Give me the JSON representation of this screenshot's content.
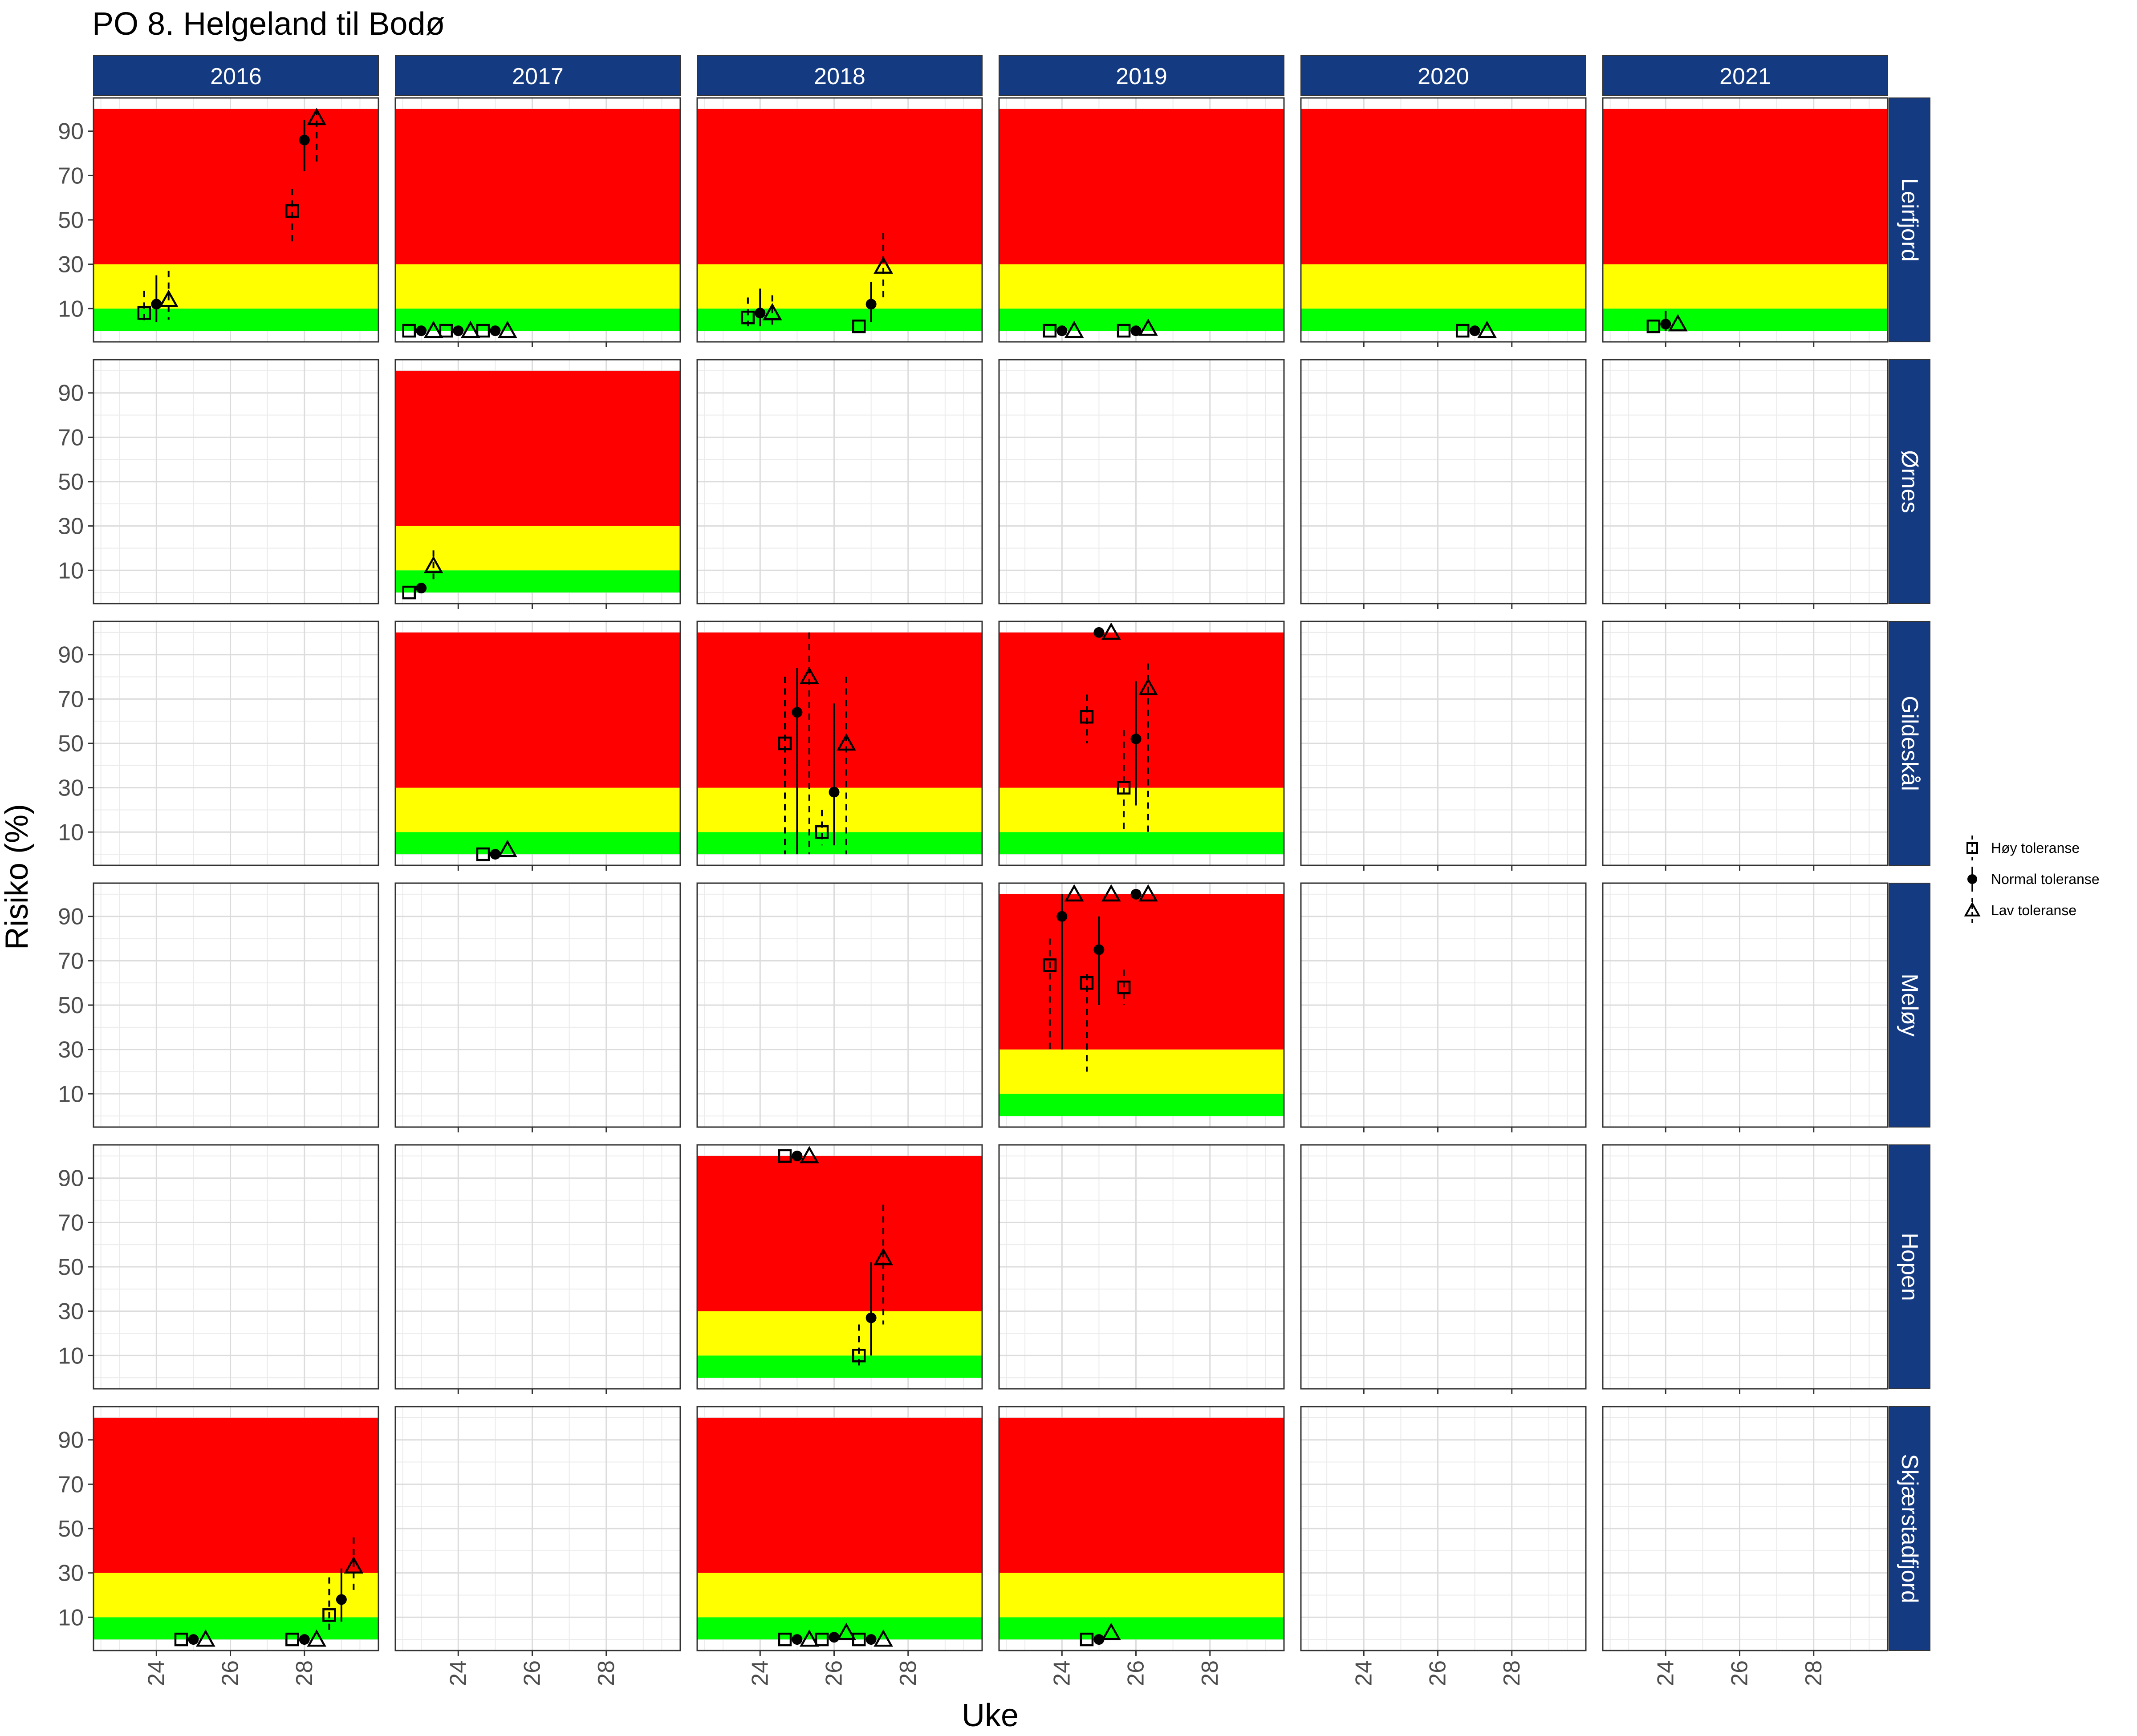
{
  "chart_data": {
    "type": "scatter",
    "title": "PO 8. Helgeland til Bodø",
    "xlabel": "Uke",
    "ylabel": "Risiko (%)",
    "years": [
      "2016",
      "2017",
      "2018",
      "2019",
      "2020",
      "2021"
    ],
    "locations": [
      "Leirfjord",
      "Ørnes",
      "Gildeskål",
      "Meløy",
      "Hopen",
      "Skjærstadfjord"
    ],
    "xlim": [
      22.3,
      30.0
    ],
    "ylim": [
      -5,
      105
    ],
    "x_ticks": [
      24,
      26,
      28
    ],
    "y_ticks": [
      10,
      30,
      50,
      70,
      90
    ],
    "risk_bands": [
      {
        "name": "lav",
        "from": 0,
        "to": 10,
        "color": "#00ff00"
      },
      {
        "name": "moderat",
        "from": 10,
        "to": 30,
        "color": "#ffff00"
      },
      {
        "name": "høy",
        "from": 30,
        "to": 100,
        "color": "#ff0000"
      }
    ],
    "grid": true,
    "legend_position": "right",
    "legend": [
      {
        "key": "hoy",
        "label": "Høy toleranse",
        "shape": "square",
        "line": "dashed"
      },
      {
        "key": "normal",
        "label": "Normal toleranse",
        "shape": "circle",
        "line": "solid"
      },
      {
        "key": "lav",
        "label": "Lav toleranse",
        "shape": "triangle",
        "line": "dashed"
      }
    ],
    "series_offsets": {
      "hoy": -0.33,
      "normal": 0,
      "lav": 0.33
    },
    "panels": [
      {
        "location": "Leirfjord",
        "year": "2016",
        "bands": true,
        "points": [
          {
            "s": "hoy",
            "week": 24,
            "y": 8,
            "lo": 3,
            "hi": 18
          },
          {
            "s": "normal",
            "week": 24,
            "y": 12,
            "lo": 4,
            "hi": 25
          },
          {
            "s": "lav",
            "week": 24,
            "y": 14,
            "lo": 5,
            "hi": 27
          },
          {
            "s": "hoy",
            "week": 28,
            "y": 54,
            "lo": 40,
            "hi": 64
          },
          {
            "s": "normal",
            "week": 28,
            "y": 86,
            "lo": 72,
            "hi": 95
          },
          {
            "s": "lav",
            "week": 28,
            "y": 96,
            "lo": 76,
            "hi": 100
          }
        ]
      },
      {
        "location": "Leirfjord",
        "year": "2017",
        "bands": true,
        "points": [
          {
            "s": "hoy",
            "week": 23,
            "y": 0
          },
          {
            "s": "normal",
            "week": 23,
            "y": 0
          },
          {
            "s": "lav",
            "week": 23,
            "y": 0
          },
          {
            "s": "hoy",
            "week": 24,
            "y": 0
          },
          {
            "s": "normal",
            "week": 24,
            "y": 0
          },
          {
            "s": "lav",
            "week": 24,
            "y": 0
          },
          {
            "s": "hoy",
            "week": 25,
            "y": 0
          },
          {
            "s": "normal",
            "week": 25,
            "y": 0
          },
          {
            "s": "lav",
            "week": 25,
            "y": 0
          }
        ]
      },
      {
        "location": "Leirfjord",
        "year": "2018",
        "bands": true,
        "points": [
          {
            "s": "hoy",
            "week": 24,
            "y": 6,
            "lo": 2,
            "hi": 15
          },
          {
            "s": "normal",
            "week": 24,
            "y": 8,
            "lo": 2,
            "hi": 19
          },
          {
            "s": "lav",
            "week": 24,
            "y": 8,
            "lo": 2,
            "hi": 16
          },
          {
            "s": "hoy",
            "week": 27,
            "y": 2
          },
          {
            "s": "normal",
            "week": 27,
            "y": 12,
            "lo": 4,
            "hi": 22
          },
          {
            "s": "lav",
            "week": 27,
            "y": 29,
            "lo": 14,
            "hi": 44
          }
        ]
      },
      {
        "location": "Leirfjord",
        "year": "2019",
        "bands": true,
        "points": [
          {
            "s": "hoy",
            "week": 24,
            "y": 0
          },
          {
            "s": "normal",
            "week": 24,
            "y": 0
          },
          {
            "s": "lav",
            "week": 24,
            "y": 0
          },
          {
            "s": "hoy",
            "week": 26,
            "y": 0
          },
          {
            "s": "normal",
            "week": 26,
            "y": 0
          },
          {
            "s": "lav",
            "week": 26,
            "y": 1
          }
        ]
      },
      {
        "location": "Leirfjord",
        "year": "2020",
        "bands": true,
        "points": [
          {
            "s": "hoy",
            "week": 27,
            "y": 0
          },
          {
            "s": "normal",
            "week": 27,
            "y": 0
          },
          {
            "s": "lav",
            "week": 27,
            "y": 0
          }
        ]
      },
      {
        "location": "Leirfjord",
        "year": "2021",
        "bands": true,
        "points": [
          {
            "s": "hoy",
            "week": 24,
            "y": 2
          },
          {
            "s": "normal",
            "week": 24,
            "y": 3,
            "lo": 0,
            "hi": 9
          },
          {
            "s": "lav",
            "week": 24,
            "y": 3
          }
        ]
      },
      {
        "location": "Ørnes",
        "year": "2017",
        "bands": true,
        "points": [
          {
            "s": "hoy",
            "week": 23,
            "y": 0
          },
          {
            "s": "normal",
            "week": 23,
            "y": 2
          },
          {
            "s": "lav",
            "week": 23,
            "y": 12,
            "lo": 6,
            "hi": 19
          }
        ]
      },
      {
        "location": "Gildeskål",
        "year": "2017",
        "bands": true,
        "points": [
          {
            "s": "hoy",
            "week": 25,
            "y": 0
          },
          {
            "s": "normal",
            "week": 25,
            "y": 0
          },
          {
            "s": "lav",
            "week": 25,
            "y": 2
          }
        ]
      },
      {
        "location": "Gildeskål",
        "year": "2018",
        "bands": true,
        "points": [
          {
            "s": "hoy",
            "week": 25,
            "y": 50,
            "lo": 0,
            "hi": 80
          },
          {
            "s": "normal",
            "week": 25,
            "y": 64,
            "lo": 0,
            "hi": 84
          },
          {
            "s": "lav",
            "week": 25,
            "y": 80,
            "lo": 0,
            "hi": 100
          },
          {
            "s": "hoy",
            "week": 26,
            "y": 10,
            "lo": 4,
            "hi": 20
          },
          {
            "s": "normal",
            "week": 26,
            "y": 28,
            "lo": 4,
            "hi": 68
          },
          {
            "s": "lav",
            "week": 26,
            "y": 50,
            "lo": 0,
            "hi": 80
          }
        ]
      },
      {
        "location": "Gildeskål",
        "year": "2019",
        "bands": true,
        "points": [
          {
            "s": "hoy",
            "week": 25,
            "y": 62,
            "lo": 50,
            "hi": 72
          },
          {
            "s": "normal",
            "week": 25,
            "y": 100
          },
          {
            "s": "lav",
            "week": 25,
            "y": 100
          },
          {
            "s": "hoy",
            "week": 26,
            "y": 30,
            "lo": 10,
            "hi": 56
          },
          {
            "s": "normal",
            "week": 26,
            "y": 52,
            "lo": 22,
            "hi": 78
          },
          {
            "s": "lav",
            "week": 26,
            "y": 75,
            "lo": 10,
            "hi": 86
          }
        ]
      },
      {
        "location": "Meløy",
        "year": "2019",
        "bands": true,
        "points": [
          {
            "s": "hoy",
            "week": 24,
            "y": 68,
            "lo": 30,
            "hi": 80
          },
          {
            "s": "normal",
            "week": 24,
            "y": 90,
            "lo": 30,
            "hi": 100
          },
          {
            "s": "lav",
            "week": 24,
            "y": 100
          },
          {
            "s": "hoy",
            "week": 25,
            "y": 60,
            "lo": 20,
            "hi": 64
          },
          {
            "s": "normal",
            "week": 25,
            "y": 75,
            "lo": 50,
            "hi": 90
          },
          {
            "s": "lav",
            "week": 25,
            "y": 100
          },
          {
            "s": "hoy",
            "week": 26,
            "y": 58,
            "lo": 50,
            "hi": 66
          },
          {
            "s": "normal",
            "week": 26,
            "y": 100
          },
          {
            "s": "lav",
            "week": 26,
            "y": 100
          }
        ]
      },
      {
        "location": "Hopen",
        "year": "2018",
        "bands": true,
        "points": [
          {
            "s": "hoy",
            "week": 25,
            "y": 100
          },
          {
            "s": "normal",
            "week": 25,
            "y": 100
          },
          {
            "s": "lav",
            "week": 25,
            "y": 100
          },
          {
            "s": "hoy",
            "week": 27,
            "y": 10,
            "lo": 4,
            "hi": 24
          },
          {
            "s": "normal",
            "week": 27,
            "y": 27,
            "lo": 10,
            "hi": 52
          },
          {
            "s": "lav",
            "week": 27,
            "y": 54,
            "lo": 24,
            "hi": 78
          }
        ]
      },
      {
        "location": "Skjærstadfjord",
        "year": "2016",
        "bands": true,
        "points": [
          {
            "s": "hoy",
            "week": 25,
            "y": 0
          },
          {
            "s": "normal",
            "week": 25,
            "y": 0
          },
          {
            "s": "lav",
            "week": 25,
            "y": 0
          },
          {
            "s": "hoy",
            "week": 28,
            "y": 0
          },
          {
            "s": "normal",
            "week": 28,
            "y": 0
          },
          {
            "s": "lav",
            "week": 28,
            "y": 0
          },
          {
            "s": "hoy",
            "week": 29,
            "y": 11,
            "lo": 4,
            "hi": 28
          },
          {
            "s": "normal",
            "week": 29,
            "y": 18,
            "lo": 8,
            "hi": 32
          },
          {
            "s": "lav",
            "week": 29,
            "y": 33,
            "lo": 20,
            "hi": 46
          }
        ]
      },
      {
        "location": "Skjærstadfjord",
        "year": "2018",
        "bands": true,
        "points": [
          {
            "s": "hoy",
            "week": 25,
            "y": 0
          },
          {
            "s": "normal",
            "week": 25,
            "y": 0
          },
          {
            "s": "lav",
            "week": 25,
            "y": 0
          },
          {
            "s": "hoy",
            "week": 26,
            "y": 0
          },
          {
            "s": "normal",
            "week": 26,
            "y": 1
          },
          {
            "s": "lav",
            "week": 26,
            "y": 3
          },
          {
            "s": "hoy",
            "week": 27,
            "y": 0
          },
          {
            "s": "normal",
            "week": 27,
            "y": 0
          },
          {
            "s": "lav",
            "week": 27,
            "y": 0
          }
        ]
      },
      {
        "location": "Skjærstadfjord",
        "year": "2019",
        "bands": true,
        "points": [
          {
            "s": "hoy",
            "week": 25,
            "y": 0
          },
          {
            "s": "normal",
            "week": 25,
            "y": 0
          },
          {
            "s": "lav",
            "week": 25,
            "y": 3
          }
        ]
      }
    ]
  }
}
